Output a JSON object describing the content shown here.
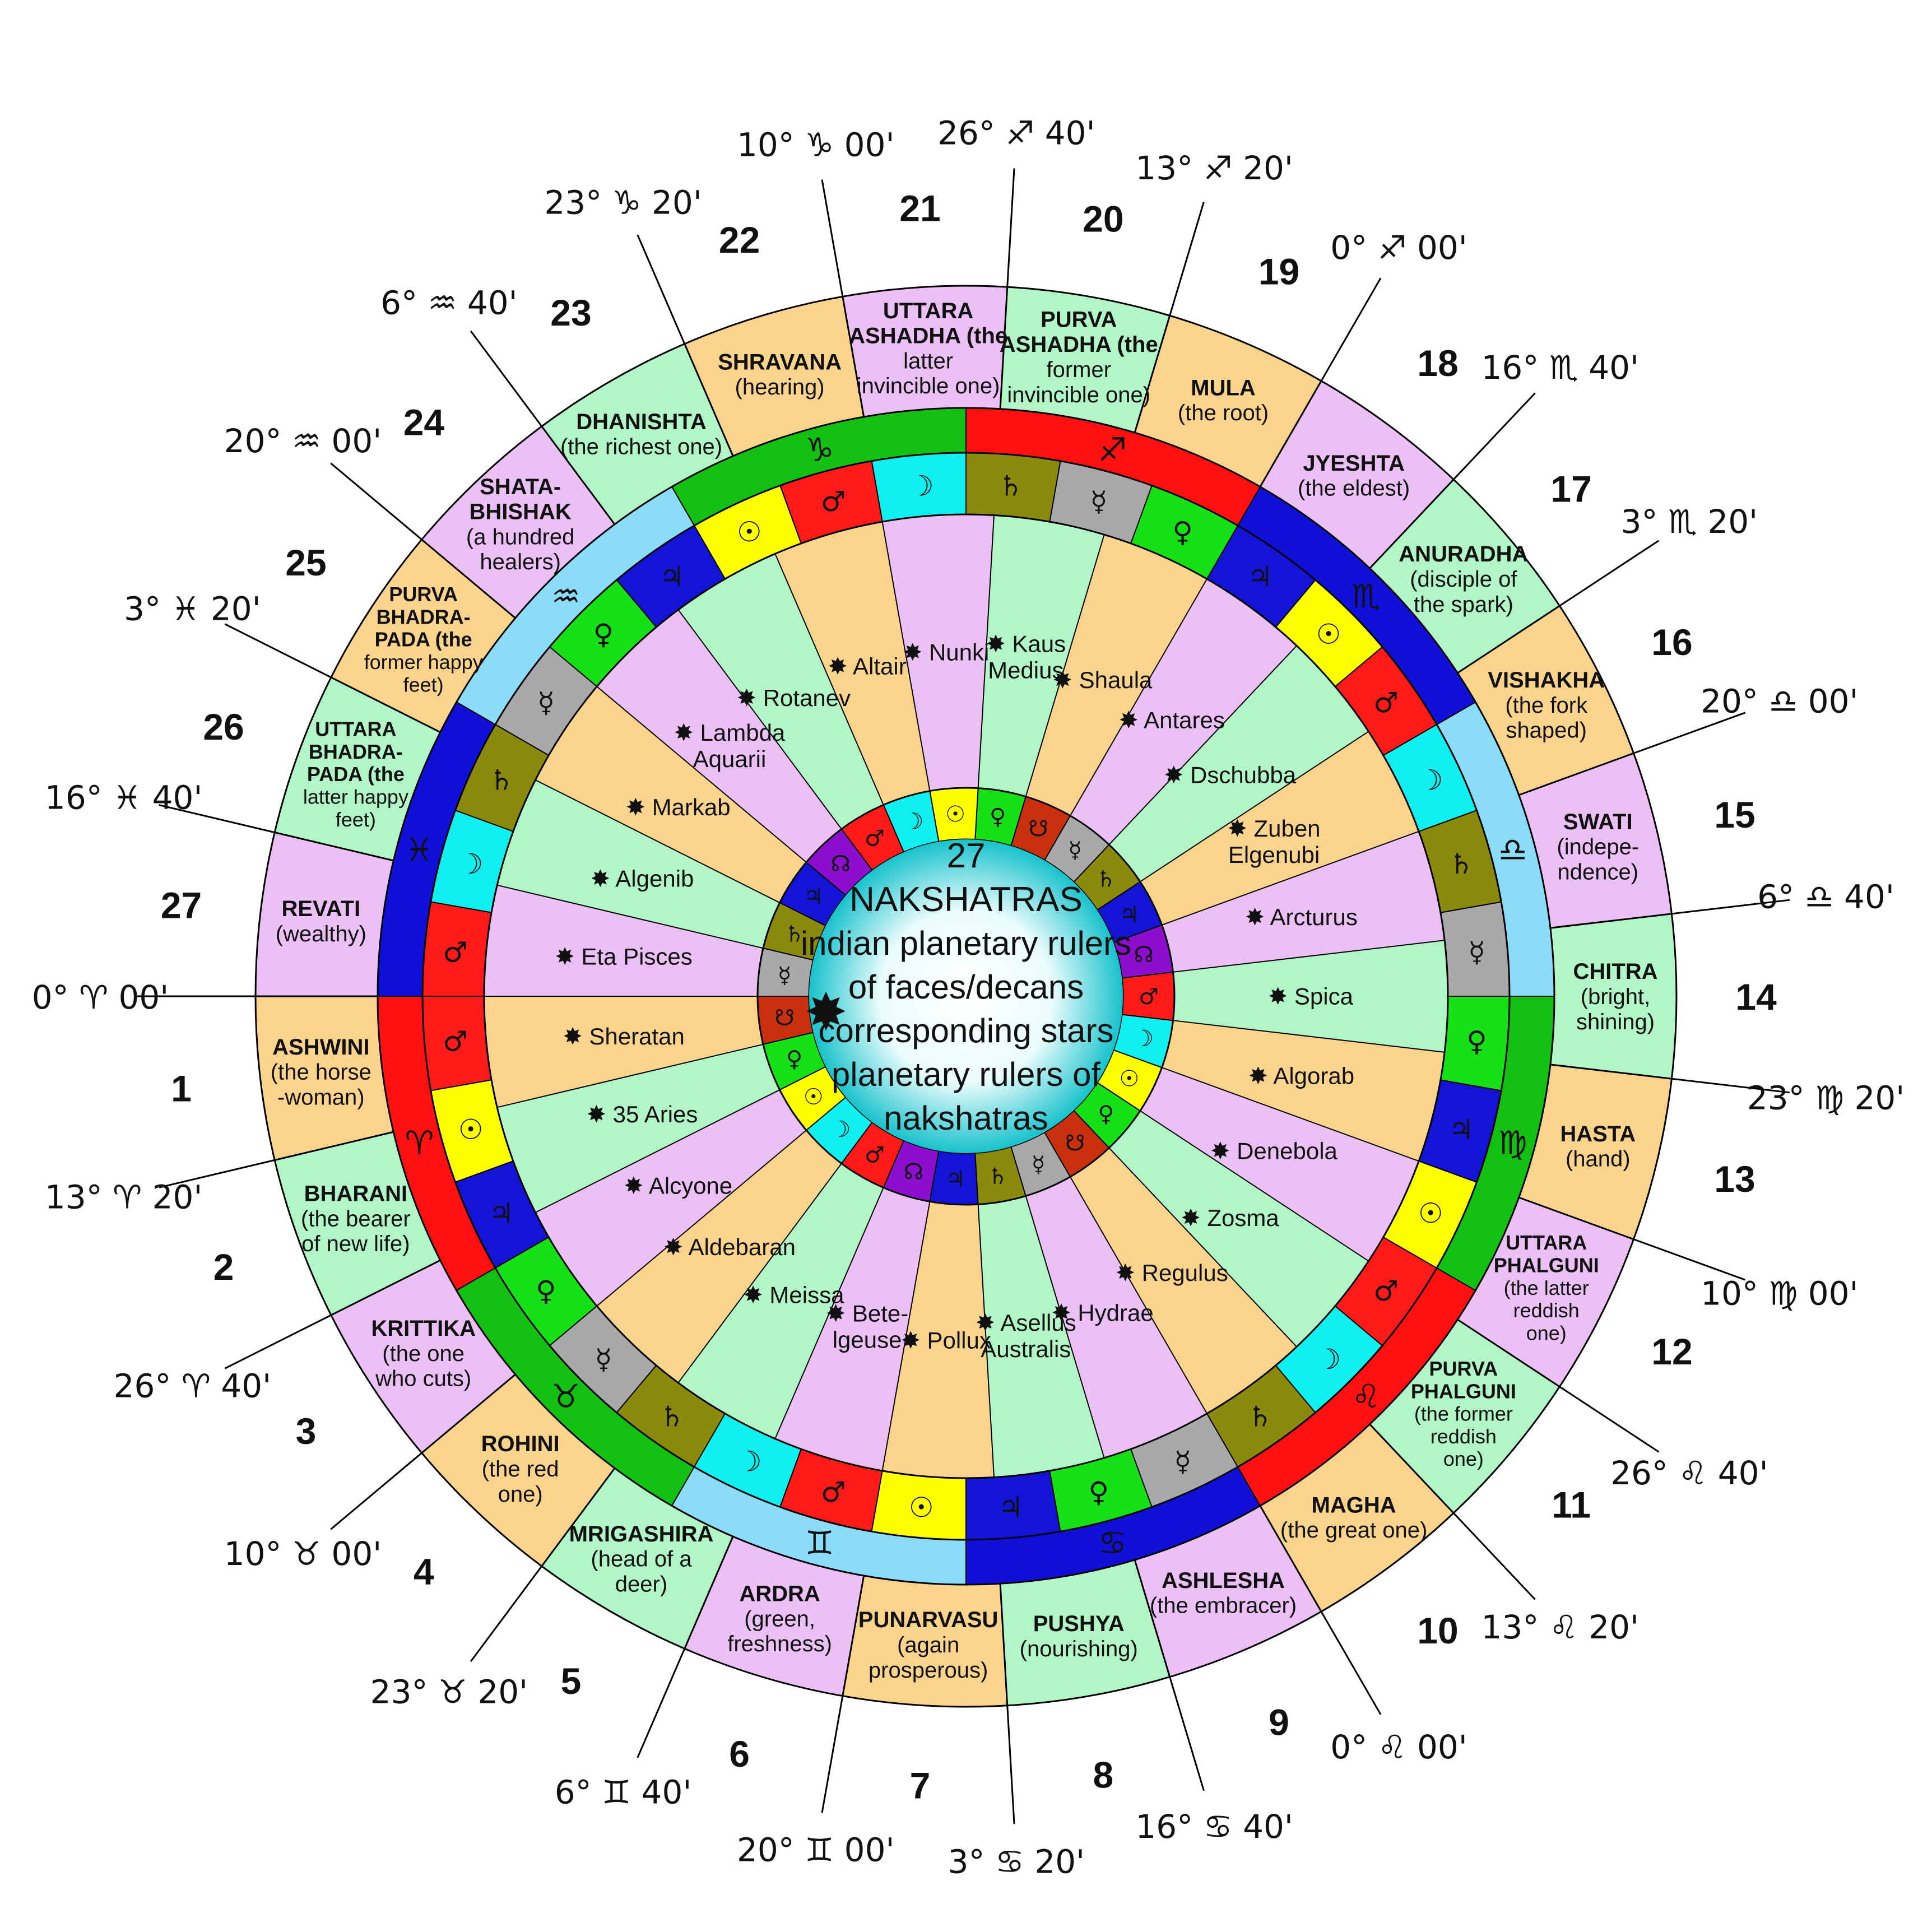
{
  "center": {
    "lines": [
      "27",
      "NAKSHATRAS",
      "indian planetary rulers",
      "of faces/decans",
      "corresponding stars",
      "planetary rulers of",
      "nakshatras"
    ],
    "bullet": "✸"
  },
  "star_bullet": "✸",
  "degree_labels": [
    "0° ♈ 00'",
    "13° ♈ 20'",
    "26° ♈ 40'",
    "10° ♉ 00'",
    "23° ♉ 20'",
    "6° ♊ 40'",
    "20° ♊ 00'",
    "3° ♋ 20'",
    "16° ♋ 40'",
    "0° ♌ 00'",
    "13° ♌ 20'",
    "26° ♌ 40'",
    "10° ♍ 00'",
    "23° ♍ 20'",
    "6° ♎ 40'",
    "20° ♎ 00'",
    "3° ♏ 20'",
    "16° ♏ 40'",
    "0° ♐ 00'",
    "13° ♐ 20'",
    "26° ♐ 40'",
    "10° ♑ 00'",
    "23° ♑ 20'",
    "6° ♒ 40'",
    "20° ♒ 00'",
    "3° ♓ 20'",
    "16° ♓ 40'"
  ],
  "nakshatras": [
    {
      "number": "1",
      "name": [
        "ASHWINI"
      ],
      "meaning": [
        "(the horse",
        "-woman)"
      ],
      "color": "#fad48c"
    },
    {
      "number": "2",
      "name": [
        "BHARANI"
      ],
      "meaning": [
        "(the bearer",
        "of new life)"
      ],
      "color": "#b2f5c6"
    },
    {
      "number": "3",
      "name": [
        "KRITTIKA"
      ],
      "meaning": [
        "(the one",
        "who cuts)"
      ],
      "color": "#ebc1f5"
    },
    {
      "number": "4",
      "name": [
        "ROHINI"
      ],
      "meaning": [
        "(the red",
        "one)"
      ],
      "color": "#fad48c"
    },
    {
      "number": "5",
      "name": [
        "MRIGASHIRA"
      ],
      "meaning": [
        "(head of a",
        "deer)"
      ],
      "color": "#b2f5c6"
    },
    {
      "number": "6",
      "name": [
        "ARDRA"
      ],
      "meaning": [
        "(green,",
        "freshness)"
      ],
      "color": "#ebc1f5"
    },
    {
      "number": "7",
      "name": [
        "PUNARVASU"
      ],
      "meaning": [
        "(again",
        "prosperous)"
      ],
      "color": "#fad48c"
    },
    {
      "number": "8",
      "name": [
        "PUSHYA"
      ],
      "meaning": [
        "(nourishing)"
      ],
      "color": "#b2f5c6"
    },
    {
      "number": "9",
      "name": [
        "ASHLESHA"
      ],
      "meaning": [
        "(the embracer)"
      ],
      "color": "#ebc1f5"
    },
    {
      "number": "10",
      "name": [
        "MAGHA"
      ],
      "meaning": [
        "(the great one)"
      ],
      "color": "#fad48c"
    },
    {
      "number": "11",
      "name": [
        "PURVA",
        "PHALGUNI"
      ],
      "meaning": [
        "(the former",
        "reddish",
        "one)"
      ],
      "color": "#b2f5c6"
    },
    {
      "number": "12",
      "name": [
        "UTTARA",
        "PHALGUNI"
      ],
      "meaning": [
        "(the latter",
        "reddish",
        "one)"
      ],
      "color": "#ebc1f5"
    },
    {
      "number": "13",
      "name": [
        "HASTA"
      ],
      "meaning": [
        "(hand)"
      ],
      "color": "#fad48c"
    },
    {
      "number": "14",
      "name": [
        "CHITRA"
      ],
      "meaning": [
        "(bright,",
        "shining)"
      ],
      "color": "#b2f5c6"
    },
    {
      "number": "15",
      "name": [
        "SWATI"
      ],
      "meaning": [
        "(indepe-",
        "ndence)"
      ],
      "color": "#ebc1f5"
    },
    {
      "number": "16",
      "name": [
        "VISHAKHA"
      ],
      "meaning": [
        "(the fork",
        "shaped)"
      ],
      "color": "#fad48c"
    },
    {
      "number": "17",
      "name": [
        "ANURADHA"
      ],
      "meaning": [
        "(disciple of",
        "the spark)"
      ],
      "color": "#b2f5c6"
    },
    {
      "number": "18",
      "name": [
        "JYESHTA"
      ],
      "meaning": [
        "(the eldest)"
      ],
      "color": "#ebc1f5"
    },
    {
      "number": "19",
      "name": [
        "MULA"
      ],
      "meaning": [
        "(the root)"
      ],
      "color": "#fad48c"
    },
    {
      "number": "20",
      "name": [
        "PURVA",
        "ASHADHA (the"
      ],
      "meaning": [
        "former",
        "invincible one)"
      ],
      "color": "#b2f5c6"
    },
    {
      "number": "21",
      "name": [
        "UTTARA",
        "ASHADHA (the"
      ],
      "meaning": [
        "latter",
        "invincible one)"
      ],
      "color": "#ebc1f5"
    },
    {
      "number": "22",
      "name": [
        "SHRAVANA"
      ],
      "meaning": [
        "(hearing)"
      ],
      "color": "#fad48c"
    },
    {
      "number": "23",
      "name": [
        "DHANISHTA"
      ],
      "meaning": [
        "(the richest one)"
      ],
      "color": "#b2f5c6"
    },
    {
      "number": "24",
      "name": [
        "SHATA-",
        "BHISHAK"
      ],
      "meaning": [
        "(a hundred",
        "healers)"
      ],
      "color": "#ebc1f5"
    },
    {
      "number": "25",
      "name": [
        "PURVA",
        "BHADRA-",
        "PADA (the"
      ],
      "meaning": [
        "former happy",
        "feet)"
      ],
      "color": "#fad48c"
    },
    {
      "number": "26",
      "name": [
        "UTTARA",
        "BHADRA-",
        "PADA (the"
      ],
      "meaning": [
        "latter happy",
        "feet)"
      ],
      "color": "#b2f5c6"
    },
    {
      "number": "27",
      "name": [
        "REVATI"
      ],
      "meaning": [
        "(wealthy)"
      ],
      "color": "#ebc1f5"
    }
  ],
  "signs": [
    {
      "glyph": "♈",
      "color": "#ff1010"
    },
    {
      "glyph": "♉",
      "color": "#12c112"
    },
    {
      "glyph": "♊",
      "color": "#8bdcf8"
    },
    {
      "glyph": "♋",
      "color": "#1010d8"
    },
    {
      "glyph": "♌",
      "color": "#ff1010"
    },
    {
      "glyph": "♍",
      "color": "#12c112"
    },
    {
      "glyph": "♎",
      "color": "#8bdcf8"
    },
    {
      "glyph": "♏",
      "color": "#1010d8"
    },
    {
      "glyph": "♐",
      "color": "#ff1010"
    },
    {
      "glyph": "♑",
      "color": "#12c112"
    },
    {
      "glyph": "♒",
      "color": "#8bdcf8"
    },
    {
      "glyph": "♓",
      "color": "#1010d8"
    }
  ],
  "planets": {
    "Mars": {
      "glyph": "♂",
      "color": "#ff1a1a"
    },
    "Sun": {
      "glyph": "☉",
      "color": "#ffff00"
    },
    "Jupiter": {
      "glyph": "♃",
      "color": "#1414d6"
    },
    "Venus": {
      "glyph": "♀",
      "color": "#16e016"
    },
    "Mercury": {
      "glyph": "☿",
      "color": "#a9a9a9"
    },
    "Saturn": {
      "glyph": "♄",
      "color": "#8c8a0d"
    },
    "Moon": {
      "glyph": "☽",
      "color": "#10f0f0"
    },
    "Rahu": {
      "glyph": "☊",
      "color": "#8b0fcc"
    },
    "Ketu": {
      "glyph": "☋",
      "color": "#c8300e"
    }
  },
  "decan_rulers": [
    "Mars",
    "Sun",
    "Jupiter",
    "Venus",
    "Mercury",
    "Saturn",
    "Moon",
    "Mars",
    "Sun",
    "Jupiter",
    "Venus",
    "Mercury",
    "Saturn",
    "Moon",
    "Mars",
    "Sun",
    "Jupiter",
    "Venus",
    "Mercury",
    "Saturn",
    "Moon",
    "Mars",
    "Sun",
    "Jupiter",
    "Venus",
    "Mercury",
    "Saturn",
    "Moon",
    "Mars",
    "Sun",
    "Jupiter",
    "Venus",
    "Mercury",
    "Saturn",
    "Moon",
    "Mars"
  ],
  "nakshatra_rulers": [
    "Ketu",
    "Venus",
    "Sun",
    "Moon",
    "Mars",
    "Rahu",
    "Jupiter",
    "Saturn",
    "Mercury",
    "Ketu",
    "Venus",
    "Sun",
    "Moon",
    "Mars",
    "Rahu",
    "Jupiter",
    "Saturn",
    "Mercury",
    "Ketu",
    "Venus",
    "Sun",
    "Moon",
    "Mars",
    "Rahu",
    "Jupiter",
    "Saturn",
    "Mercury"
  ],
  "stars": [
    [
      "Sheratan"
    ],
    [
      "35 Aries"
    ],
    [
      "Alcyone"
    ],
    [
      "Aldebaran"
    ],
    [
      "Meissa"
    ],
    [
      "Bete-",
      "lgeuse"
    ],
    [
      "Pollux"
    ],
    [
      "Asellus",
      "Australis"
    ],
    [
      "Hydrae"
    ],
    [
      "Regulus"
    ],
    [
      "Zosma"
    ],
    [
      "Denebola"
    ],
    [
      "Algorab"
    ],
    [
      "Spica"
    ],
    [
      "Arcturus"
    ],
    [
      "Zuben",
      "Elgenubi"
    ],
    [
      "Dschubba"
    ],
    [
      "Antares"
    ],
    [
      "Shaula"
    ],
    [
      "Kaus",
      "Medius"
    ],
    [
      "Nunki"
    ],
    [
      "Altair"
    ],
    [
      "Rotanev"
    ],
    [
      "Lambda",
      "Aquarii"
    ],
    [
      "Markab"
    ],
    [
      "Algenib"
    ],
    [
      "Eta Pisces"
    ]
  ]
}
